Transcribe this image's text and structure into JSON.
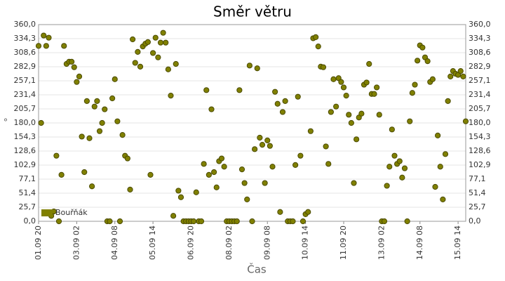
{
  "chart_data": {
    "type": "scatter",
    "title": "Směr větru",
    "x_label": "Čas",
    "y_label": "°",
    "series": [
      {
        "name": "Bouřňák",
        "color": "#808000",
        "x": [
          "01.09 20",
          "01.09 22",
          "02.09 00",
          "02.09 02",
          "02.09 04",
          "02.09 06",
          "02.09 08",
          "02.09 10",
          "02.09 12",
          "02.09 14",
          "02.09 16",
          "02.09 18",
          "02.09 20",
          "02.09 22",
          "03.09 00",
          "03.09 02",
          "03.09 04",
          "03.09 06",
          "03.09 08",
          "03.09 10",
          "03.09 12",
          "03.09 14",
          "03.09 16",
          "03.09 18",
          "03.09 20",
          "03.09 22",
          "04.09 00",
          "04.09 02",
          "04.09 04",
          "04.09 06",
          "04.09 08",
          "04.09 10",
          "04.09 12",
          "04.09 14",
          "04.09 16",
          "04.09 18",
          "04.09 20",
          "04.09 22",
          "05.09 00",
          "05.09 02",
          "05.09 04",
          "05.09 06",
          "05.09 08",
          "05.09 10",
          "05.09 12",
          "05.09 14",
          "05.09 16",
          "05.09 18",
          "05.09 20",
          "05.09 22",
          "06.09 00",
          "06.09 02",
          "06.09 04",
          "06.09 06",
          "06.09 08",
          "06.09 10",
          "06.09 12",
          "06.09 14",
          "06.09 16",
          "06.09 18",
          "06.09 20",
          "06.09 22",
          "07.09 00",
          "07.09 02",
          "07.09 04",
          "07.09 06",
          "07.09 08",
          "07.09 10",
          "07.09 12",
          "07.09 14",
          "07.09 16",
          "07.09 18",
          "07.09 20",
          "07.09 22",
          "08.09 00",
          "08.09 02",
          "08.09 04",
          "08.09 06",
          "08.09 08",
          "08.09 10",
          "08.09 12",
          "08.09 14",
          "08.09 16",
          "08.09 18",
          "08.09 20",
          "08.09 22",
          "09.09 00",
          "09.09 02",
          "09.09 04",
          "09.09 06",
          "09.09 08",
          "09.09 10",
          "09.09 12",
          "09.09 14",
          "09.09 16",
          "09.09 18",
          "09.09 20",
          "09.09 22",
          "10.09 00",
          "10.09 02",
          "10.09 04",
          "10.09 06",
          "10.09 08",
          "10.09 10",
          "10.09 12",
          "10.09 14",
          "10.09 16",
          "10.09 18",
          "10.09 20",
          "10.09 22",
          "11.09 00",
          "11.09 02",
          "11.09 04",
          "11.09 06",
          "11.09 08",
          "11.09 10",
          "11.09 12",
          "11.09 14",
          "11.09 16",
          "11.09 18",
          "11.09 20",
          "11.09 22",
          "12.09 00",
          "12.09 02",
          "12.09 04",
          "12.09 06",
          "12.09 08",
          "12.09 10",
          "12.09 12",
          "12.09 14",
          "12.09 16",
          "12.09 18",
          "12.09 20",
          "12.09 22",
          "13.09 00",
          "13.09 02",
          "13.09 04",
          "13.09 06",
          "13.09 08",
          "13.09 10",
          "13.09 12",
          "13.09 14",
          "13.09 16",
          "13.09 18",
          "13.09 20",
          "13.09 22",
          "14.09 00",
          "14.09 02",
          "14.09 04",
          "14.09 06",
          "14.09 08",
          "14.09 10",
          "14.09 12",
          "14.09 14",
          "14.09 16",
          "14.09 18",
          "14.09 20",
          "14.09 22",
          "15.09 00",
          "15.09 02",
          "15.09 04",
          "15.09 06",
          "15.09 08",
          "15.09 10",
          "15.09 12",
          "15.09 14",
          "15.09 16",
          "15.09 18",
          "15.09 20"
        ],
        "values": [
          321,
          180,
          340,
          321,
          336,
          10,
          18,
          120,
          0,
          85,
          321,
          288,
          292,
          292,
          282,
          255,
          265,
          155,
          90,
          220,
          152,
          64,
          210,
          220,
          165,
          180,
          205,
          0,
          0,
          225,
          260,
          183,
          0,
          158,
          120,
          115,
          58,
          333,
          290,
          310,
          283,
          320,
          325,
          328,
          85,
          308,
          336,
          300,
          327,
          345,
          327,
          278,
          230,
          10,
          288,
          56,
          44,
          0,
          0,
          0,
          0,
          0,
          53,
          0,
          0,
          105,
          240,
          85,
          205,
          90,
          62,
          110,
          115,
          100,
          0,
          0,
          0,
          0,
          0,
          240,
          95,
          70,
          40,
          285,
          0,
          132,
          280,
          153,
          140,
          70,
          148,
          138,
          100,
          237,
          215,
          17,
          200,
          220,
          0,
          0,
          0,
          103,
          228,
          120,
          0,
          13,
          17,
          165,
          335,
          337,
          320,
          283,
          282,
          137,
          105,
          200,
          260,
          210,
          262,
          255,
          245,
          230,
          195,
          180,
          70,
          150,
          190,
          197,
          250,
          254,
          288,
          233,
          233,
          245,
          195,
          0,
          0,
          65,
          100,
          168,
          120,
          105,
          110,
          80,
          97,
          0,
          183,
          235,
          250,
          294,
          322,
          318,
          300,
          293,
          255,
          260,
          63,
          157,
          100,
          40,
          123,
          220,
          265,
          275,
          270,
          268,
          275,
          265,
          183
        ]
      }
    ],
    "xlim": [
      "01.09 20",
      "15.09 20"
    ],
    "xticks": [
      "01.09 20",
      "03.09 02",
      "04.09 08",
      "05.09 14",
      "06.09 20",
      "08.09 02",
      "09.09 08",
      "10.09 14",
      "11.09 20",
      "13.09 02",
      "14.09 08",
      "15.09 14"
    ],
    "ylim": [
      0,
      360
    ],
    "yticks": [
      {
        "value": 0,
        "label": "0,0"
      },
      {
        "value": 25.7,
        "label": "25,7"
      },
      {
        "value": 51.4,
        "label": "51,4"
      },
      {
        "value": 77.1,
        "label": "77,1"
      },
      {
        "value": 102.9,
        "label": "102,9"
      },
      {
        "value": 128.6,
        "label": "128,6"
      },
      {
        "value": 154.3,
        "label": "154,3"
      },
      {
        "value": 180,
        "label": "180,0"
      },
      {
        "value": 205.7,
        "label": "205,7"
      },
      {
        "value": 231.4,
        "label": "231,4"
      },
      {
        "value": 257.1,
        "label": "257,1"
      },
      {
        "value": 282.9,
        "label": "282,9"
      },
      {
        "value": 308.6,
        "label": "308,6"
      },
      {
        "value": 334.3,
        "label": "334,3"
      },
      {
        "value": 360,
        "label": "360,0"
      }
    ],
    "grid": true,
    "legend": "bottom-left"
  }
}
